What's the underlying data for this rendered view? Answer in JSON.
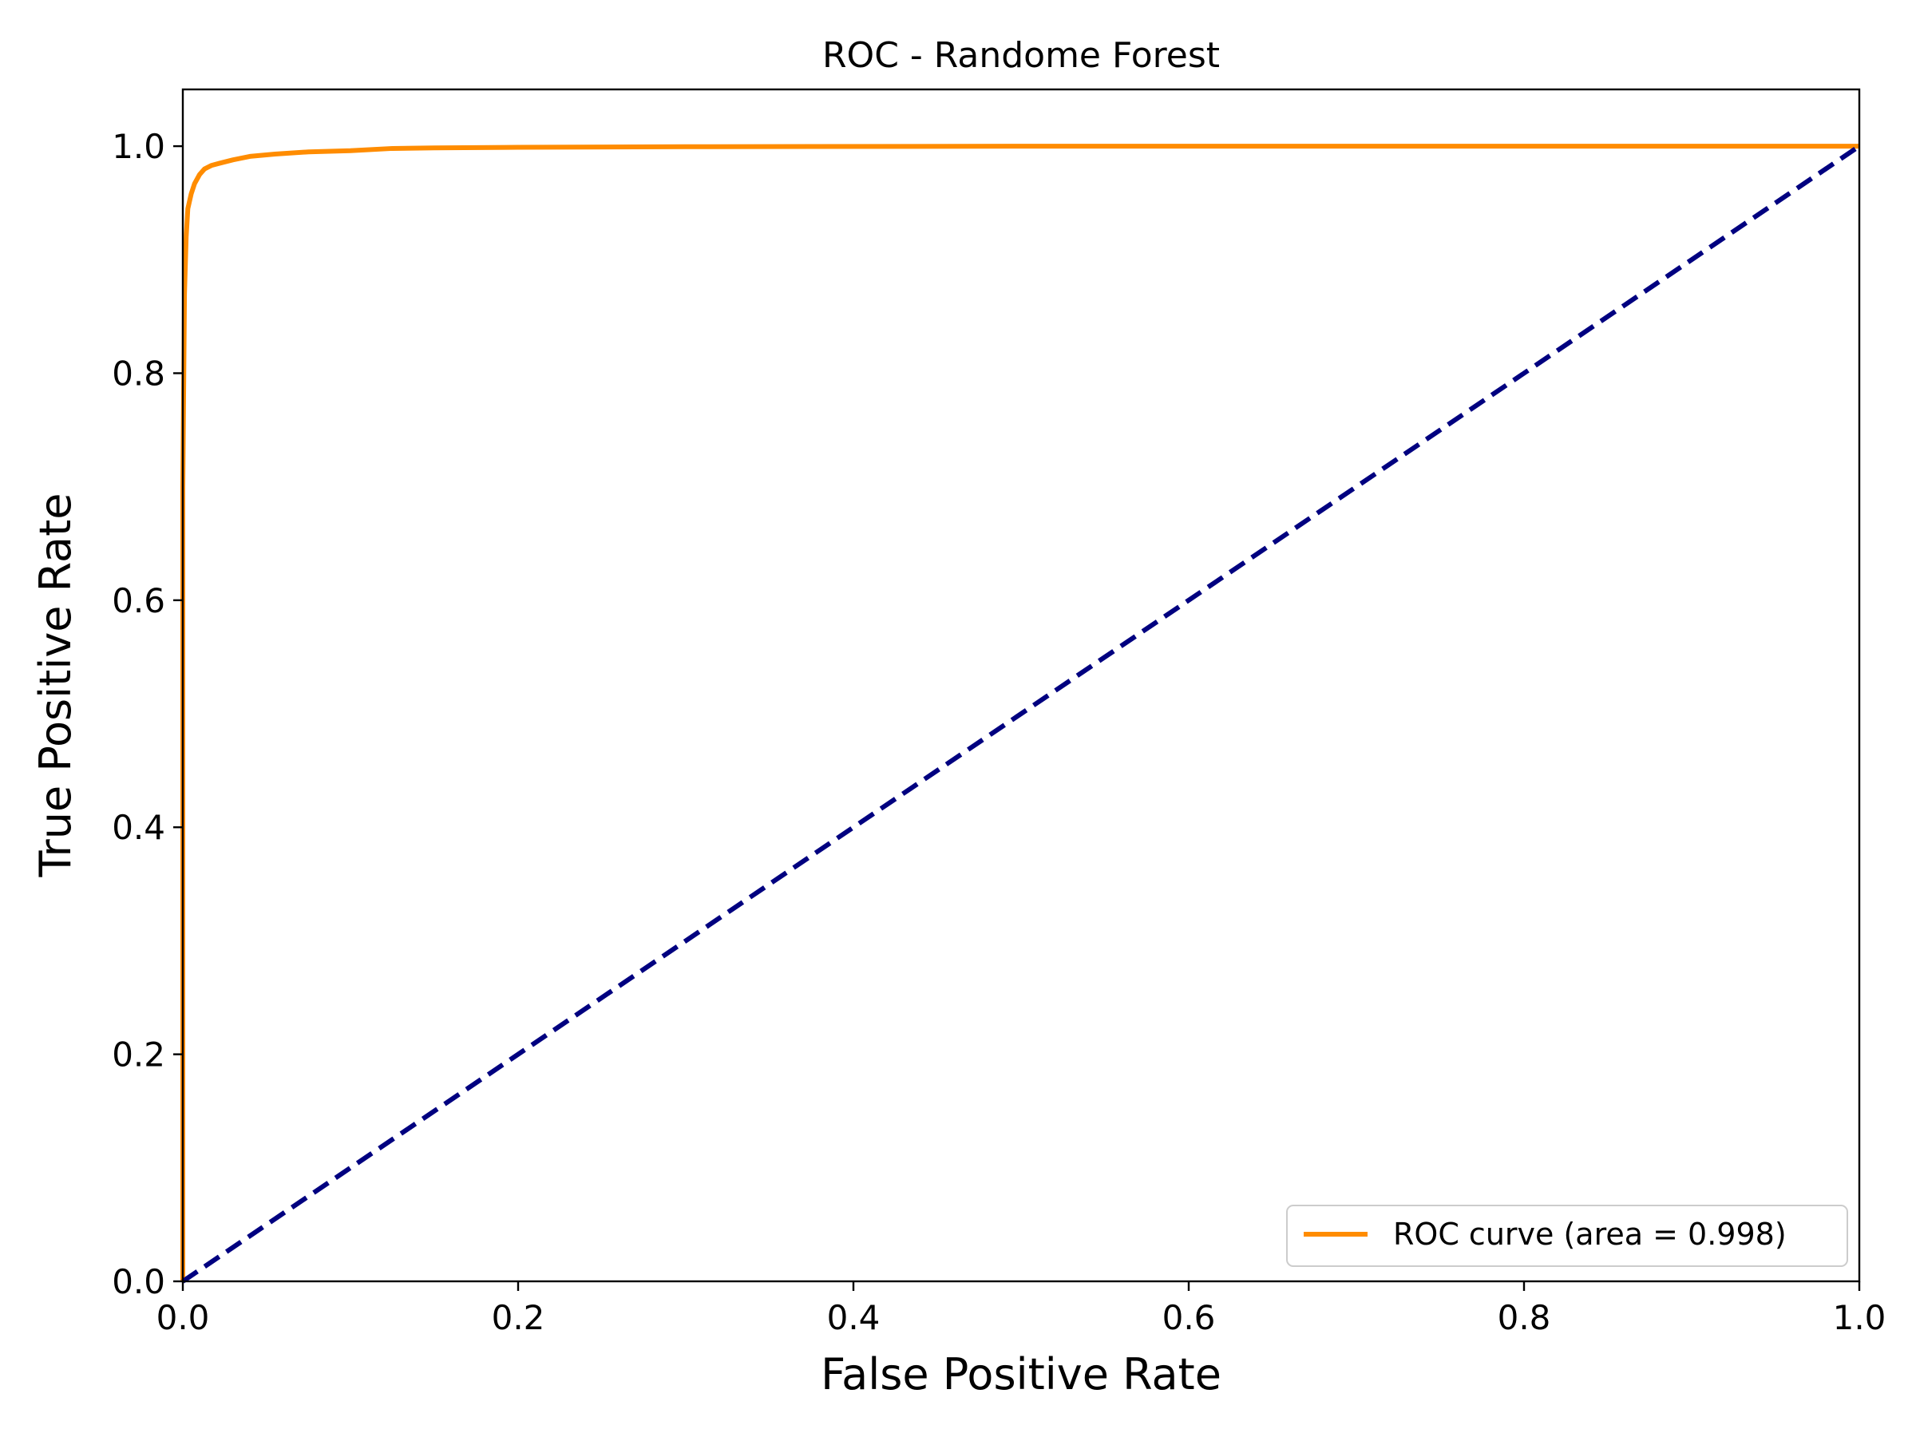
{
  "chart_data": {
    "type": "line",
    "title": "ROC - Randome Forest",
    "xlabel": "False Positive Rate",
    "ylabel": "True Positive Rate",
    "xlim": [
      0.0,
      1.0
    ],
    "ylim": [
      0.0,
      1.05
    ],
    "x_ticks": [
      0.0,
      0.2,
      0.4,
      0.6,
      0.8,
      1.0
    ],
    "x_tick_labels": [
      "0.0",
      "0.2",
      "0.4",
      "0.6",
      "0.8",
      "1.0"
    ],
    "y_ticks": [
      0.0,
      0.2,
      0.4,
      0.6,
      0.8,
      1.0
    ],
    "y_tick_labels": [
      "0.0",
      "0.2",
      "0.4",
      "0.6",
      "0.8",
      "1.0"
    ],
    "grid": false,
    "legend_position": "lower-right",
    "series": [
      {
        "name": "ROC curve (area = 0.998)",
        "color": "#ff8c00",
        "style": "solid",
        "x": [
          0.0,
          0.0,
          0.001,
          0.002,
          0.003,
          0.005,
          0.007,
          0.01,
          0.013,
          0.017,
          0.022,
          0.03,
          0.04,
          0.055,
          0.075,
          0.1,
          0.125,
          0.15,
          0.2,
          0.3,
          0.5,
          0.7,
          1.0
        ],
        "y": [
          0.0,
          0.7,
          0.87,
          0.92,
          0.945,
          0.958,
          0.967,
          0.975,
          0.98,
          0.983,
          0.985,
          0.988,
          0.991,
          0.993,
          0.995,
          0.996,
          0.998,
          0.9985,
          0.999,
          0.9995,
          1.0,
          1.0,
          1.0
        ]
      },
      {
        "name": "",
        "color": "#000080",
        "style": "dashed",
        "x": [
          0.0,
          1.0
        ],
        "y": [
          0.0,
          1.0
        ]
      }
    ]
  }
}
